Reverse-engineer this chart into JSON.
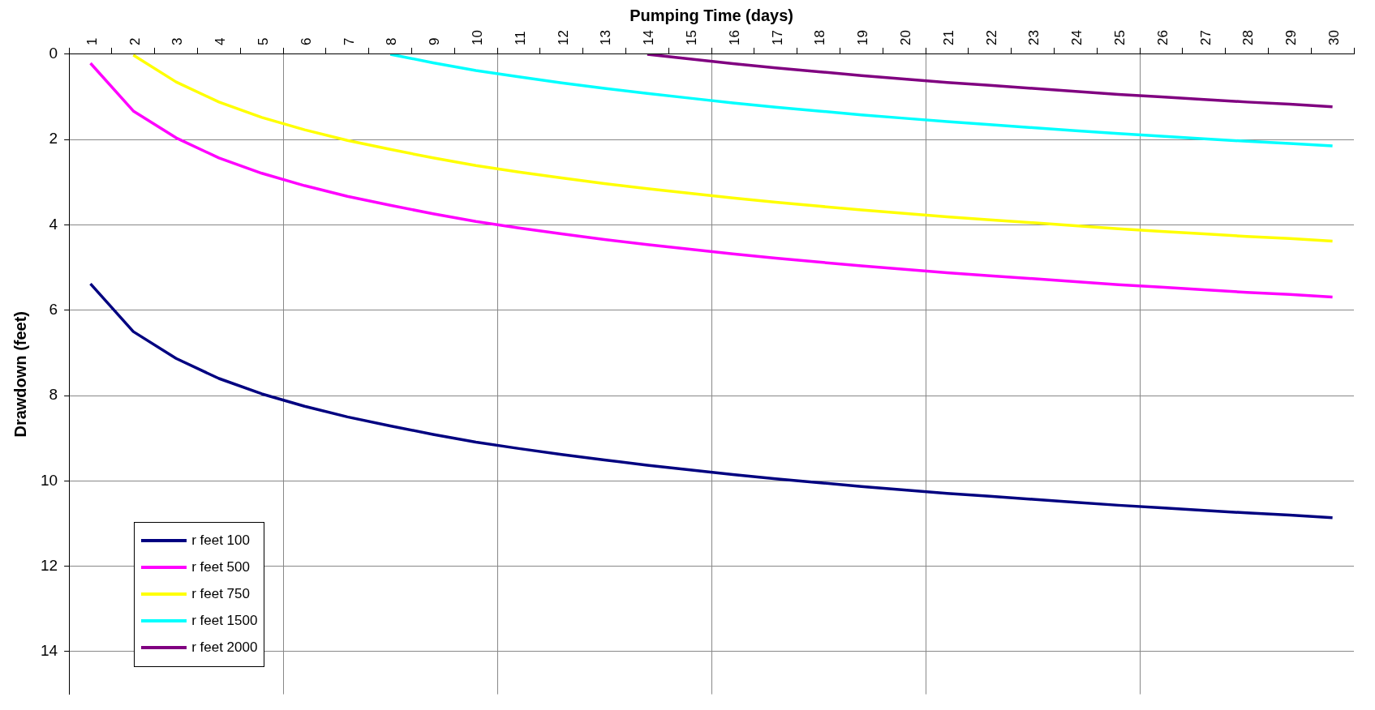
{
  "chart_data": {
    "type": "line",
    "xlabel": "Pumping Time (days)",
    "ylabel": "Drawdown (feet)",
    "categories": [
      "1",
      "2",
      "3",
      "4",
      "5",
      "6",
      "7",
      "8",
      "9",
      "10",
      "11",
      "12",
      "13",
      "14",
      "15",
      "16",
      "17",
      "18",
      "19",
      "20",
      "21",
      "22",
      "23",
      "24",
      "25",
      "26",
      "27",
      "28",
      "29",
      "30"
    ],
    "ylim": [
      15,
      0
    ],
    "yticks": [
      0,
      2,
      4,
      6,
      8,
      10,
      12,
      14
    ],
    "grid": true,
    "legend": "bottom left",
    "marker": "none",
    "line_style": "solid",
    "series": [
      {
        "name": "r feet 100",
        "color": "#000080",
        "values": [
          5.38,
          6.5,
          7.13,
          7.6,
          7.96,
          8.25,
          8.5,
          8.71,
          8.91,
          9.09,
          9.24,
          9.38,
          9.51,
          9.63,
          9.74,
          9.85,
          9.95,
          10.04,
          10.13,
          10.21,
          10.29,
          10.36,
          10.43,
          10.5,
          10.57,
          10.63,
          10.69,
          10.75,
          10.8,
          10.86
        ]
      },
      {
        "name": "r feet 500",
        "color": "#ff00ff",
        "values": [
          0.21,
          1.33,
          1.96,
          2.43,
          2.79,
          3.08,
          3.33,
          3.54,
          3.74,
          3.92,
          4.07,
          4.21,
          4.34,
          4.46,
          4.57,
          4.68,
          4.78,
          4.87,
          4.96,
          5.04,
          5.12,
          5.19,
          5.26,
          5.33,
          5.4,
          5.46,
          5.52,
          5.58,
          5.63,
          5.69
        ]
      },
      {
        "name": "r feet 750",
        "color": "#ffff00",
        "values": [
          null,
          0.02,
          0.65,
          1.12,
          1.48,
          1.77,
          2.02,
          2.23,
          2.43,
          2.61,
          2.76,
          2.9,
          3.03,
          3.15,
          3.26,
          3.37,
          3.47,
          3.56,
          3.65,
          3.73,
          3.81,
          3.88,
          3.95,
          4.02,
          4.09,
          4.15,
          4.21,
          4.27,
          4.32,
          4.38
        ]
      },
      {
        "name": "r feet 1500",
        "color": "#00ffff",
        "values": [
          null,
          null,
          null,
          null,
          null,
          null,
          null,
          0.0,
          0.2,
          0.38,
          0.53,
          0.67,
          0.8,
          0.92,
          1.03,
          1.14,
          1.24,
          1.33,
          1.42,
          1.5,
          1.58,
          1.65,
          1.72,
          1.79,
          1.86,
          1.92,
          1.98,
          2.04,
          2.09,
          2.15
        ]
      },
      {
        "name": "r feet 2000",
        "color": "#800080",
        "values": [
          null,
          null,
          null,
          null,
          null,
          null,
          null,
          null,
          null,
          null,
          null,
          null,
          null,
          0.0,
          0.11,
          0.22,
          0.32,
          0.41,
          0.5,
          0.58,
          0.66,
          0.73,
          0.8,
          0.87,
          0.94,
          1.0,
          1.06,
          1.12,
          1.17,
          1.23
        ]
      }
    ]
  }
}
